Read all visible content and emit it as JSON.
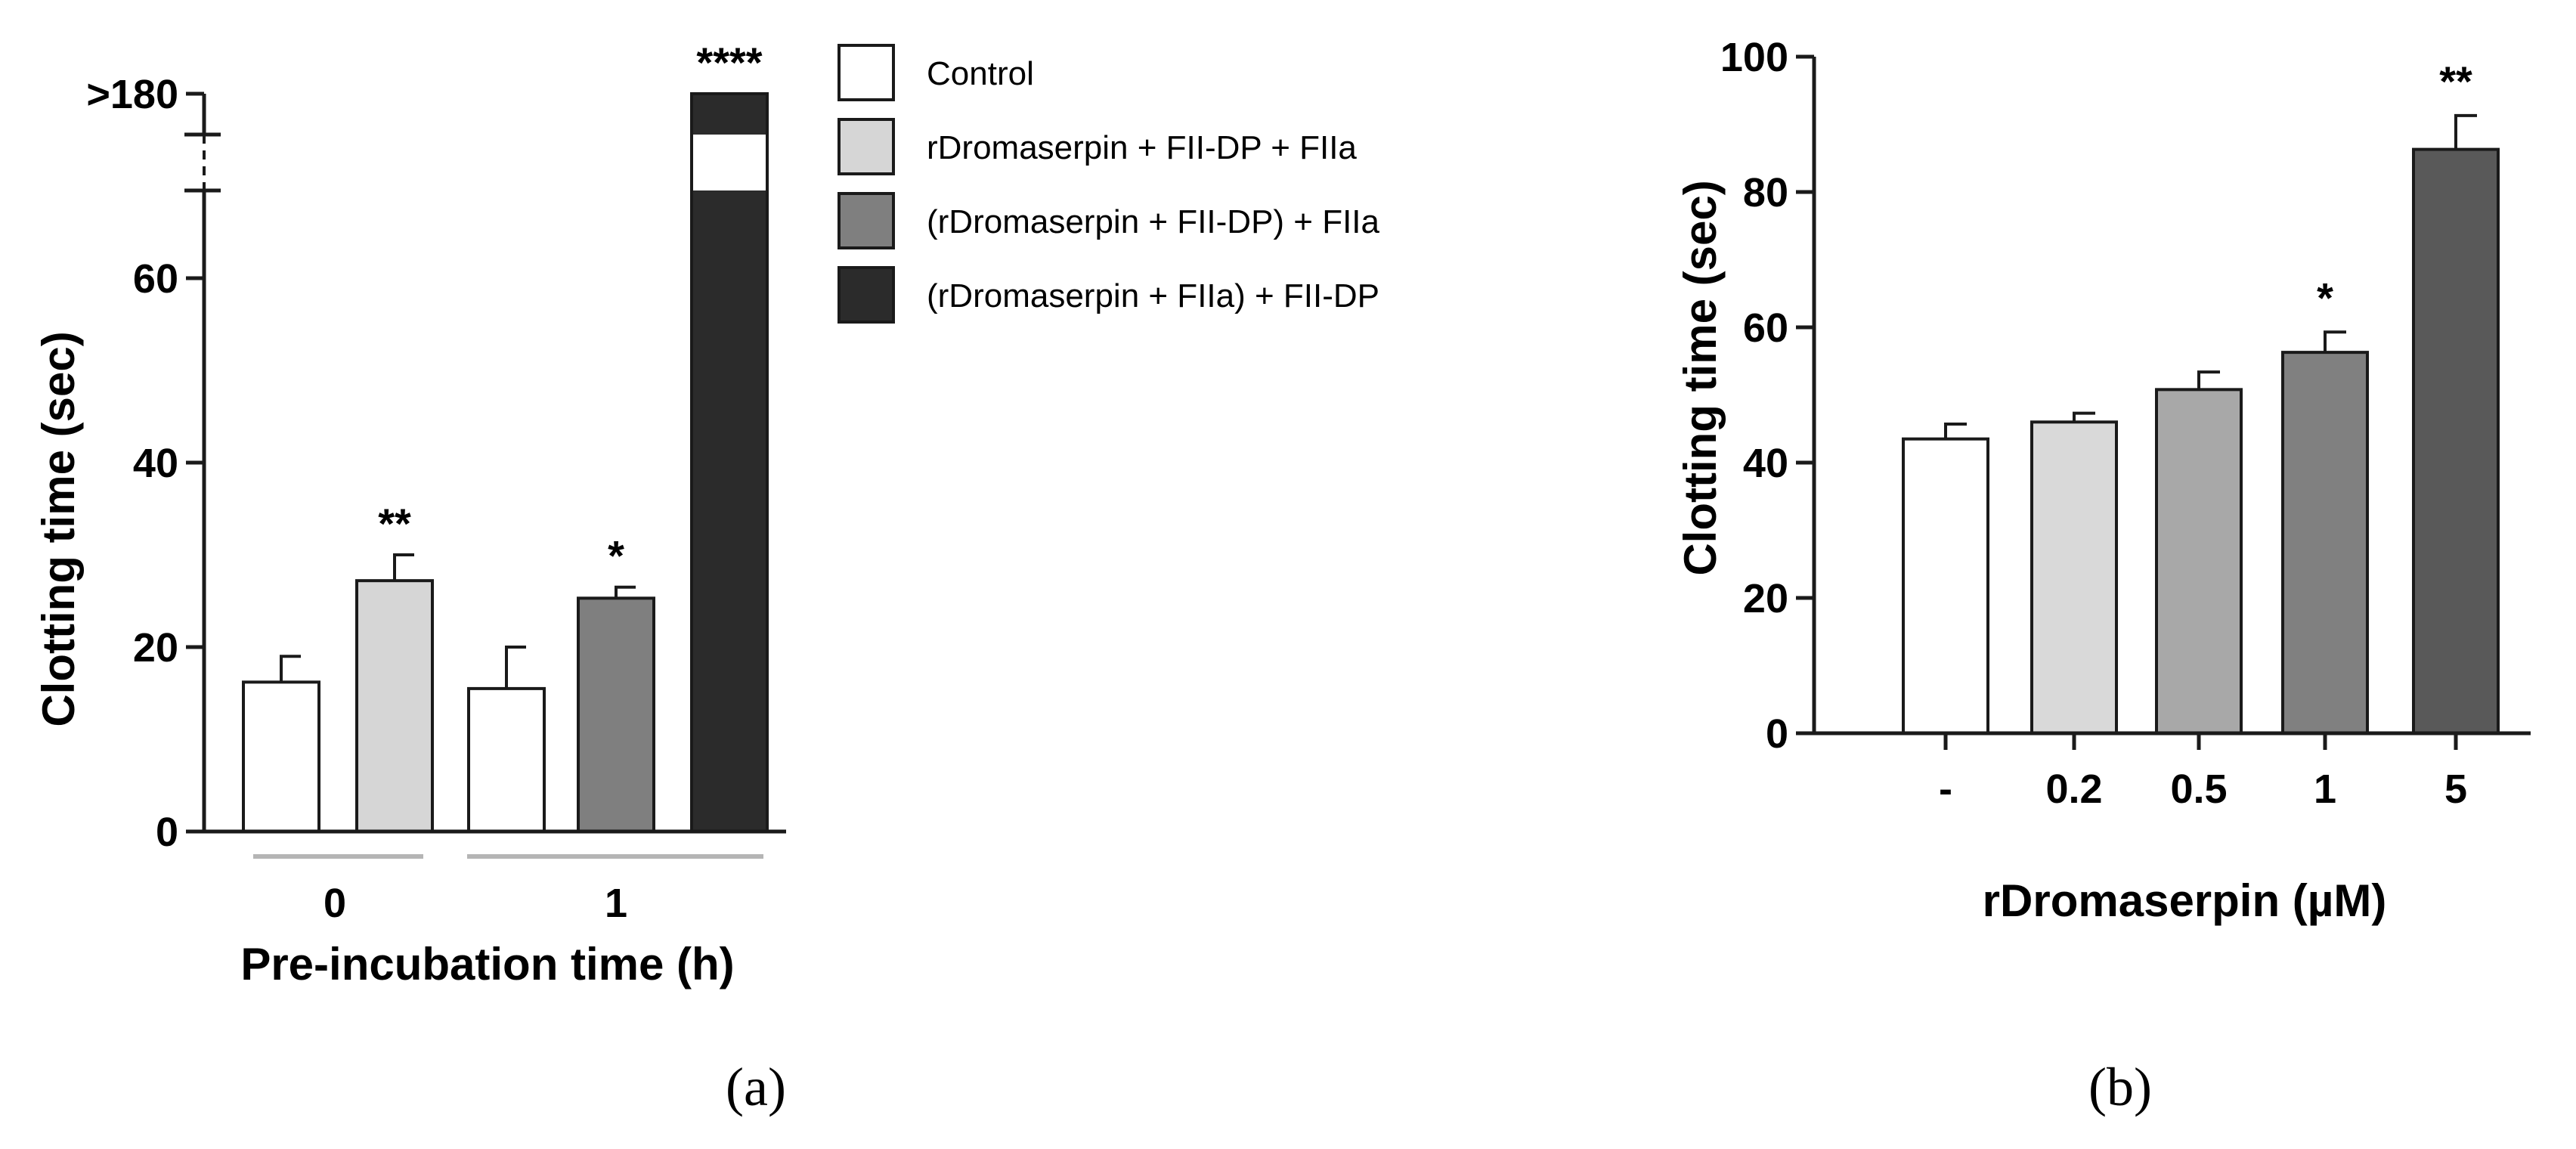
{
  "chart_data": [
    {
      "type": "bar",
      "panel_label": "(a)",
      "ylabel": "Clotting time (sec)",
      "xlabel": "Pre-incubation time (h)",
      "ylim": [
        0,
        80
      ],
      "y_ticks": [
        "0",
        "20",
        "40",
        "60",
        ">180"
      ],
      "y_tick_values": [
        0,
        20,
        40,
        60,
        80
      ],
      "axis_break": true,
      "groups": [
        {
          "label": "0",
          "series_indices": [
            0,
            1
          ]
        },
        {
          "label": "1",
          "series_indices": [
            0,
            2,
            3
          ]
        }
      ],
      "series": [
        {
          "name": "Control",
          "color": "#ffffff"
        },
        {
          "name": "rDromaserpin + FII-DP + FIIa",
          "color": "#d6d6d6"
        },
        {
          "name": "(rDromaserpin + FII-DP) + FIIa",
          "color": "#7f7f7f"
        },
        {
          "name": "(rDromaserpin + FIIa) + FII-DP",
          "color": "#2b2b2b"
        }
      ],
      "bars": [
        {
          "group": 0,
          "series": 0,
          "value": 16.2,
          "error": 2.8,
          "sig": ""
        },
        {
          "group": 0,
          "series": 1,
          "value": 27.2,
          "error": 2.8,
          "sig": "**"
        },
        {
          "group": 1,
          "series": 0,
          "value": 15.5,
          "error": 4.5,
          "sig": ""
        },
        {
          "group": 1,
          "series": 2,
          "value": 25.3,
          "error": 1.2,
          "sig": "*"
        },
        {
          "group": 1,
          "series": 3,
          "value": 180,
          "display_value": ">180",
          "error": 0,
          "sig": "****"
        }
      ]
    },
    {
      "type": "bar",
      "panel_label": "(b)",
      "ylabel": "Clotting time (sec)",
      "xlabel": "rDromaserpin (µM)",
      "ylim": [
        0,
        100
      ],
      "y_ticks": [
        "0",
        "20",
        "40",
        "60",
        "80",
        "100"
      ],
      "y_tick_values": [
        0,
        20,
        40,
        60,
        80,
        100
      ],
      "categories": [
        "-",
        "0.2",
        "0.5",
        "1",
        "5"
      ],
      "values": [
        43.5,
        46.0,
        50.8,
        56.3,
        86.3
      ],
      "errors": [
        2.2,
        1.3,
        2.6,
        3.0,
        5.0
      ],
      "sig": [
        "",
        "",
        "",
        "*",
        "**"
      ],
      "colors": [
        "#ffffff",
        "#d9d9d9",
        "#a8a8a8",
        "#808080",
        "#595959"
      ]
    }
  ]
}
